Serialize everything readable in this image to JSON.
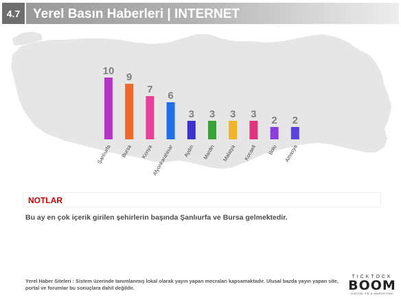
{
  "header": {
    "section_number": "4.7",
    "title": "Yerel Basın Haberleri | INTERNET"
  },
  "chart_data": {
    "type": "bar",
    "categories": [
      "Şanlıurfa",
      "Bursa",
      "Konya",
      "Afyonkarahisar",
      "Aydın",
      "Mardin",
      "Malatya",
      "Kocaeli",
      "Bolu",
      "Amasya"
    ],
    "values": [
      10,
      9,
      7,
      6,
      3,
      3,
      3,
      3,
      2,
      2
    ],
    "data_labels": [
      "10",
      "9",
      "7",
      "6",
      "3",
      "3",
      "3",
      "3",
      "2",
      "2"
    ],
    "colors": [
      "#b833c7",
      "#ee6a2c",
      "#ea3f9a",
      "#1f6fe8",
      "#3b33c8",
      "#36a336",
      "#f0b32a",
      "#e0337e",
      "#8b3fe0",
      "#5b3fe0"
    ],
    "label_color": "#7f7f7f",
    "ylim": [
      0,
      10
    ],
    "title": "",
    "xlabel": "",
    "ylabel": "",
    "grid": false,
    "background": "turkey-map"
  },
  "notes": {
    "title": "NOTLAR",
    "text": "Bu ay en çok içerik girilen şehirlerin başında Şanlıurfa ve Bursa gelmektedir."
  },
  "footnote": "Yerel Haber Siteleri : Sistem üzerinde tanımlanmış lokal olarak yayın yapan mecraları kapsamaktadır. Ulusal bazda yayın yapan site, portal ve forumlar bu sonuçlara dahil değildir.",
  "logo": {
    "top": "TICKTOCK",
    "main": "BOOM",
    "sub": "DIGITAL PR & MARKETING"
  }
}
